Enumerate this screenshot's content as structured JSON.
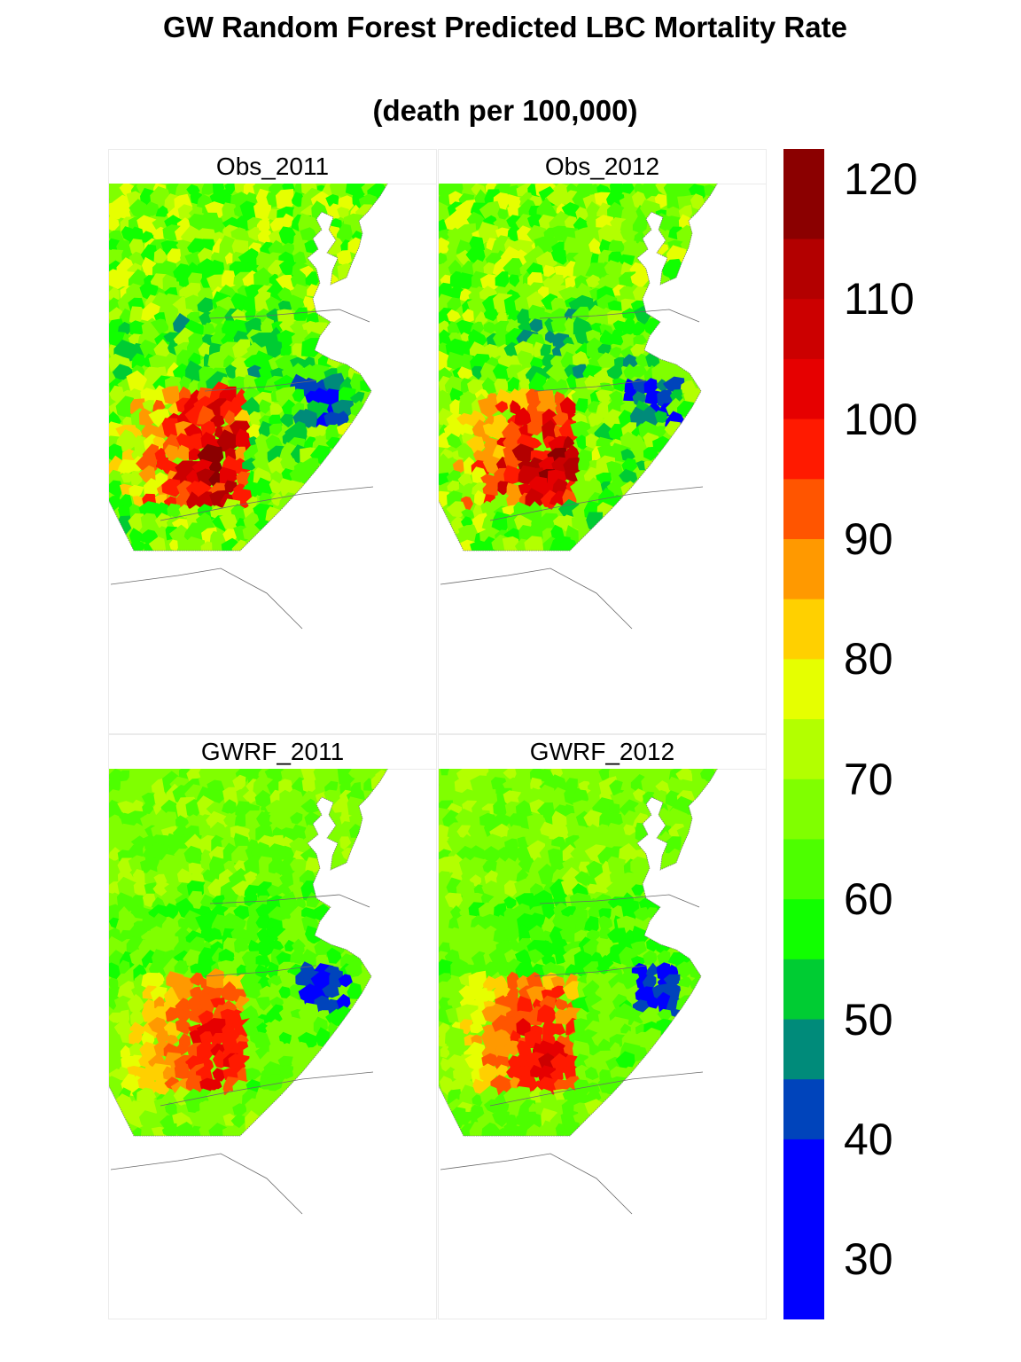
{
  "title": "GW Random Forest Predicted LBC Mortality Rate",
  "subtitle": "(death per 100,000)",
  "panels": [
    {
      "label": "Obs_2011",
      "variant": "obs",
      "year": 2011
    },
    {
      "label": "Obs_2012",
      "variant": "obs",
      "year": 2012
    },
    {
      "label": "GWRF_2011",
      "variant": "gwrf",
      "year": 2011
    },
    {
      "label": "GWRF_2012",
      "variant": "gwrf",
      "year": 2012
    }
  ],
  "legend": {
    "labels": [
      "120",
      "110",
      "100",
      "90",
      "80",
      "70",
      "60",
      "50",
      "40",
      "30"
    ],
    "range": [
      25,
      122.5
    ],
    "bins": [
      {
        "from": 115,
        "to": 122.5,
        "color": "#8b0000"
      },
      {
        "from": 110,
        "to": 115,
        "color": "#b30000"
      },
      {
        "from": 105,
        "to": 110,
        "color": "#cc0000"
      },
      {
        "from": 100,
        "to": 105,
        "color": "#e60000"
      },
      {
        "from": 95,
        "to": 100,
        "color": "#ff1a00"
      },
      {
        "from": 90,
        "to": 95,
        "color": "#ff5500"
      },
      {
        "from": 85,
        "to": 90,
        "color": "#ff9900"
      },
      {
        "from": 80,
        "to": 85,
        "color": "#ffd000"
      },
      {
        "from": 75,
        "to": 80,
        "color": "#e6ff00"
      },
      {
        "from": 70,
        "to": 75,
        "color": "#b3ff00"
      },
      {
        "from": 65,
        "to": 70,
        "color": "#80ff00"
      },
      {
        "from": 60,
        "to": 65,
        "color": "#4dff00"
      },
      {
        "from": 55,
        "to": 60,
        "color": "#11ff00"
      },
      {
        "from": 50,
        "to": 55,
        "color": "#00cc33"
      },
      {
        "from": 45,
        "to": 50,
        "color": "#008b7a"
      },
      {
        "from": 40,
        "to": 45,
        "color": "#0044bb"
      },
      {
        "from": 25,
        "to": 40,
        "color": "#0000ff"
      }
    ]
  }
}
